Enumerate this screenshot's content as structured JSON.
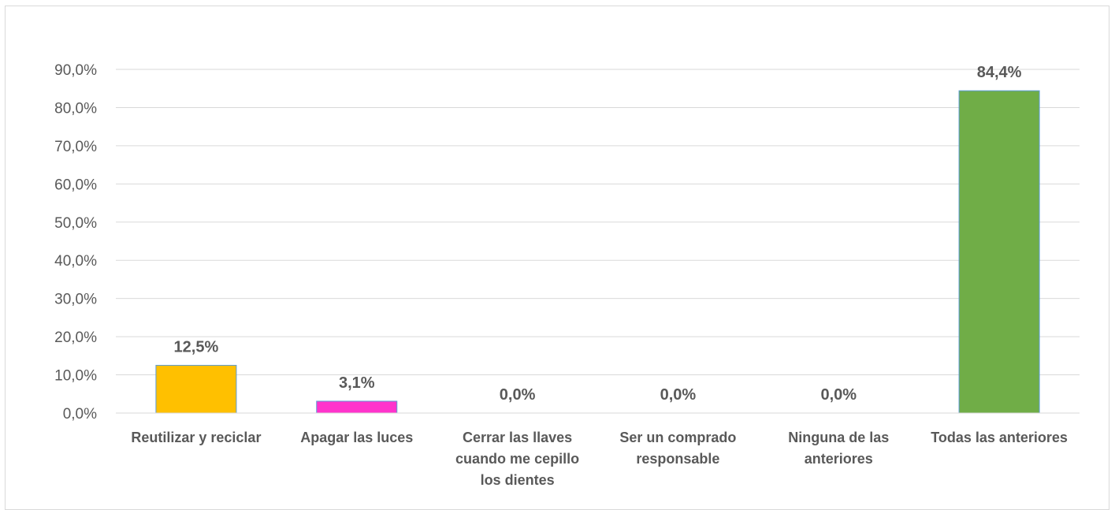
{
  "chart_data": {
    "type": "bar",
    "categories": [
      [
        "Reutilizar y reciclar"
      ],
      [
        "Apagar las luces"
      ],
      [
        "Cerrar las llaves",
        "cuando me cepillo",
        "los dientes"
      ],
      [
        "Ser un comprado",
        "responsable"
      ],
      [
        "Ninguna de las",
        "anteriores"
      ],
      [
        "Todas las anteriores"
      ]
    ],
    "values": [
      12.5,
      3.1,
      0.0,
      0.0,
      0.0,
      84.4
    ],
    "data_labels": [
      "12,5%",
      "3,1%",
      "0,0%",
      "0,0%",
      "0,0%",
      "84,4%"
    ],
    "colors": [
      "#FFC000",
      "#FF33CC",
      "#4472C4",
      "#4472C4",
      "#4472C4",
      "#70AD47"
    ],
    "bar_border_color": "#5B9BD5",
    "ylim": [
      0,
      90
    ],
    "yticks": [
      0,
      10,
      20,
      30,
      40,
      50,
      60,
      70,
      80,
      90
    ],
    "ytick_labels": [
      "0,0%",
      "10,0%",
      "20,0%",
      "30,0%",
      "40,0%",
      "50,0%",
      "60,0%",
      "70,0%",
      "80,0%",
      "90,0%"
    ],
    "grid": true,
    "grid_color": "#d9d9d9",
    "title": "",
    "xlabel": "",
    "ylabel": "",
    "legend": "none"
  }
}
